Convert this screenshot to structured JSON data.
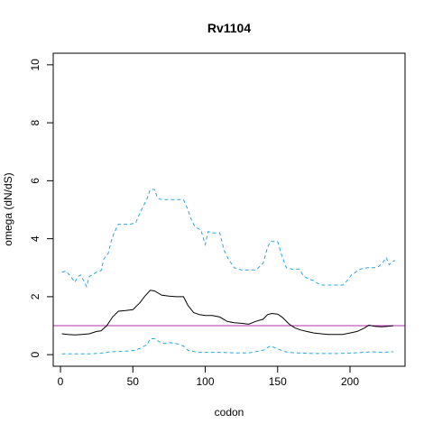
{
  "chart_data": {
    "type": "line",
    "title": "Rv1104",
    "xlabel": "codon",
    "ylabel": "omega (dN/dS)",
    "xlim": [
      -5,
      238
    ],
    "ylim": [
      -0.4,
      10.4
    ],
    "xticks": [
      0,
      50,
      100,
      150,
      200
    ],
    "yticks": [
      0,
      2,
      4,
      6,
      8,
      10
    ],
    "grid": false,
    "reference_line": {
      "y": 1,
      "color": "#b030b0"
    },
    "series": [
      {
        "role": "mean",
        "color": "#000000",
        "linestyle": "solid",
        "points": [
          [
            1,
            0.72
          ],
          [
            5,
            0.7
          ],
          [
            10,
            0.68
          ],
          [
            15,
            0.7
          ],
          [
            20,
            0.72
          ],
          [
            25,
            0.8
          ],
          [
            28,
            0.82
          ],
          [
            32,
            1.0
          ],
          [
            36,
            1.3
          ],
          [
            40,
            1.5
          ],
          [
            45,
            1.52
          ],
          [
            50,
            1.55
          ],
          [
            55,
            1.8
          ],
          [
            58,
            2.0
          ],
          [
            62,
            2.22
          ],
          [
            65,
            2.2
          ],
          [
            70,
            2.05
          ],
          [
            75,
            2.02
          ],
          [
            80,
            2.0
          ],
          [
            85,
            2.0
          ],
          [
            88,
            1.7
          ],
          [
            92,
            1.45
          ],
          [
            96,
            1.38
          ],
          [
            100,
            1.35
          ],
          [
            105,
            1.35
          ],
          [
            110,
            1.3
          ],
          [
            115,
            1.15
          ],
          [
            120,
            1.1
          ],
          [
            125,
            1.08
          ],
          [
            130,
            1.05
          ],
          [
            135,
            1.15
          ],
          [
            140,
            1.22
          ],
          [
            143,
            1.38
          ],
          [
            146,
            1.42
          ],
          [
            150,
            1.4
          ],
          [
            153,
            1.3
          ],
          [
            158,
            1.05
          ],
          [
            162,
            0.92
          ],
          [
            166,
            0.85
          ],
          [
            170,
            0.8
          ],
          [
            175,
            0.75
          ],
          [
            180,
            0.72
          ],
          [
            185,
            0.7
          ],
          [
            190,
            0.7
          ],
          [
            195,
            0.7
          ],
          [
            200,
            0.75
          ],
          [
            205,
            0.8
          ],
          [
            210,
            0.92
          ],
          [
            213,
            1.02
          ],
          [
            217,
            0.98
          ],
          [
            222,
            0.96
          ],
          [
            226,
            0.98
          ],
          [
            230,
            1.0
          ]
        ]
      },
      {
        "role": "upper",
        "color": "#29a7e0",
        "linestyle": "dashed",
        "points": [
          [
            1,
            2.85
          ],
          [
            4,
            2.88
          ],
          [
            7,
            2.7
          ],
          [
            10,
            2.5
          ],
          [
            12,
            2.7
          ],
          [
            14,
            2.75
          ],
          [
            16,
            2.55
          ],
          [
            18,
            2.35
          ],
          [
            20,
            2.7
          ],
          [
            22,
            2.75
          ],
          [
            25,
            2.85
          ],
          [
            28,
            2.9
          ],
          [
            30,
            3.3
          ],
          [
            33,
            3.5
          ],
          [
            35,
            3.9
          ],
          [
            37,
            4.2
          ],
          [
            40,
            4.5
          ],
          [
            45,
            4.5
          ],
          [
            48,
            4.5
          ],
          [
            52,
            4.55
          ],
          [
            55,
            4.9
          ],
          [
            58,
            5.2
          ],
          [
            60,
            5.4
          ],
          [
            62,
            5.7
          ],
          [
            65,
            5.7
          ],
          [
            67,
            5.4
          ],
          [
            70,
            5.35
          ],
          [
            75,
            5.35
          ],
          [
            80,
            5.35
          ],
          [
            85,
            5.35
          ],
          [
            88,
            5.0
          ],
          [
            90,
            4.7
          ],
          [
            93,
            4.4
          ],
          [
            97,
            4.3
          ],
          [
            100,
            3.8
          ],
          [
            102,
            4.25
          ],
          [
            105,
            4.2
          ],
          [
            110,
            4.2
          ],
          [
            113,
            3.6
          ],
          [
            116,
            3.3
          ],
          [
            120,
            3.0
          ],
          [
            125,
            2.92
          ],
          [
            130,
            2.92
          ],
          [
            135,
            2.92
          ],
          [
            140,
            3.15
          ],
          [
            143,
            3.7
          ],
          [
            145,
            3.9
          ],
          [
            150,
            3.9
          ],
          [
            153,
            3.4
          ],
          [
            156,
            3.0
          ],
          [
            160,
            2.95
          ],
          [
            165,
            2.95
          ],
          [
            168,
            2.7
          ],
          [
            172,
            2.6
          ],
          [
            175,
            2.55
          ],
          [
            178,
            2.45
          ],
          [
            180,
            2.4
          ],
          [
            185,
            2.4
          ],
          [
            190,
            2.4
          ],
          [
            195,
            2.4
          ],
          [
            198,
            2.55
          ],
          [
            201,
            2.75
          ],
          [
            204,
            2.85
          ],
          [
            207,
            2.95
          ],
          [
            212,
            3.0
          ],
          [
            217,
            3.0
          ],
          [
            220,
            3.05
          ],
          [
            223,
            3.2
          ],
          [
            225,
            3.35
          ],
          [
            227,
            3.1
          ],
          [
            229,
            3.2
          ],
          [
            231,
            3.25
          ]
        ]
      },
      {
        "role": "lower",
        "color": "#29a7e0",
        "linestyle": "dashed",
        "points": [
          [
            1,
            0.03
          ],
          [
            10,
            0.03
          ],
          [
            20,
            0.03
          ],
          [
            28,
            0.05
          ],
          [
            35,
            0.1
          ],
          [
            45,
            0.12
          ],
          [
            52,
            0.15
          ],
          [
            56,
            0.25
          ],
          [
            60,
            0.35
          ],
          [
            62,
            0.55
          ],
          [
            65,
            0.55
          ],
          [
            68,
            0.45
          ],
          [
            72,
            0.38
          ],
          [
            75,
            0.42
          ],
          [
            80,
            0.38
          ],
          [
            85,
            0.3
          ],
          [
            88,
            0.15
          ],
          [
            95,
            0.08
          ],
          [
            110,
            0.08
          ],
          [
            120,
            0.06
          ],
          [
            130,
            0.06
          ],
          [
            140,
            0.15
          ],
          [
            145,
            0.3
          ],
          [
            150,
            0.2
          ],
          [
            155,
            0.1
          ],
          [
            162,
            0.06
          ],
          [
            175,
            0.04
          ],
          [
            190,
            0.04
          ],
          [
            200,
            0.05
          ],
          [
            210,
            0.08
          ],
          [
            215,
            0.1
          ],
          [
            222,
            0.08
          ],
          [
            230,
            0.1
          ]
        ]
      }
    ]
  }
}
